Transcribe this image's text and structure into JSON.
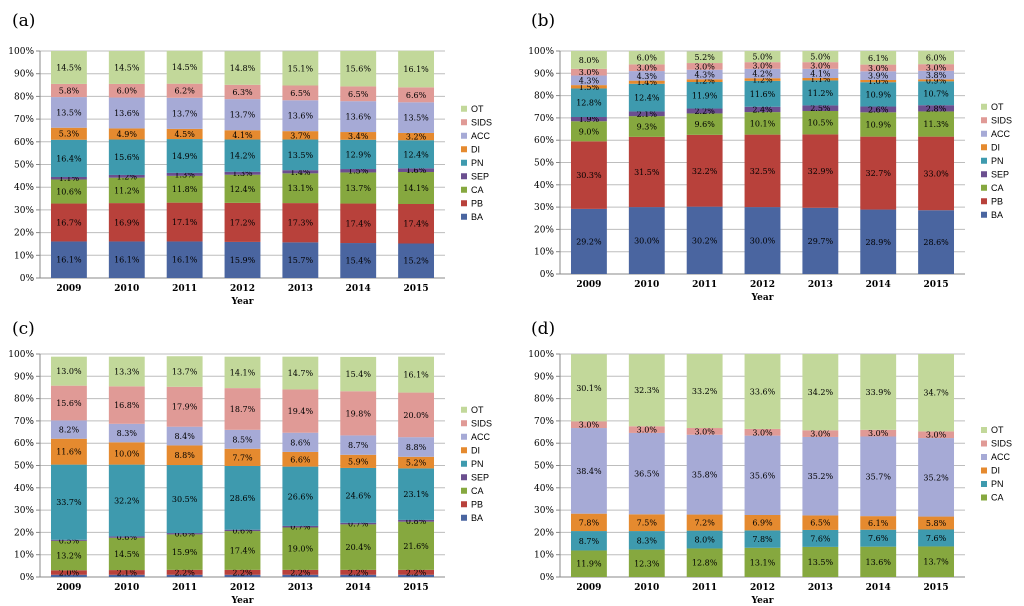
{
  "colors": {
    "BA": "#4a65a0",
    "PB": "#b8413b",
    "CA": "#86a83f",
    "SEP": "#6b4f8f",
    "PN": "#3e9aae",
    "DI": "#e58a2f",
    "ACC": "#a6aad6",
    "SIDS": "#e09a96",
    "OT": "#c2d89a"
  },
  "chart_data": [
    {
      "type": "bar",
      "stacked": true,
      "panel_label": "(a)",
      "xlabel": "Year",
      "ylabel": "",
      "ylim": [
        0,
        100
      ],
      "yticks": [
        "0%",
        "10%",
        "20%",
        "30%",
        "40%",
        "50%",
        "60%",
        "70%",
        "80%",
        "90%",
        "100%"
      ],
      "categories": [
        "2009",
        "2010",
        "2011",
        "2012",
        "2013",
        "2014",
        "2015"
      ],
      "legend": [
        "OT",
        "SIDS",
        "ACC",
        "DI",
        "PN",
        "SEP",
        "CA",
        "PB",
        "BA"
      ],
      "series": [
        {
          "name": "BA",
          "values": [
            16.1,
            16.1,
            16.1,
            15.9,
            15.7,
            15.4,
            15.2
          ],
          "labels": [
            "16.1%",
            "16.1%",
            "16.1%",
            "15.9%",
            "15.7%",
            "15.4%",
            "15.2%"
          ]
        },
        {
          "name": "PB",
          "values": [
            16.7,
            16.9,
            17.1,
            17.2,
            17.3,
            17.4,
            17.4
          ],
          "labels": [
            "16.7%",
            "16.9%",
            "17.1%",
            "17.2%",
            "17.3%",
            "17.4%",
            "17.4%"
          ]
        },
        {
          "name": "CA",
          "values": [
            10.6,
            11.2,
            11.8,
            12.4,
            13.1,
            13.7,
            14.1
          ],
          "labels": [
            "10.6%",
            "11.2%",
            "11.8%",
            "12.4%",
            "13.1%",
            "13.7%",
            "14.1%"
          ]
        },
        {
          "name": "SEP",
          "values": [
            1.1,
            1.2,
            1.3,
            1.3,
            1.4,
            1.5,
            1.6
          ],
          "labels": [
            "1.1%",
            "1.2%",
            "1.3%",
            "1.3%",
            "1.4%",
            "1.5%",
            "1.6%"
          ]
        },
        {
          "name": "PN",
          "values": [
            16.4,
            15.6,
            14.9,
            14.2,
            13.5,
            12.9,
            12.4
          ],
          "labels": [
            "16.4%",
            "15.6%",
            "14.9%",
            "14.2%",
            "13.5%",
            "12.9%",
            "12.4%"
          ]
        },
        {
          "name": "DI",
          "values": [
            5.3,
            4.9,
            4.5,
            4.1,
            3.7,
            3.4,
            3.2
          ],
          "labels": [
            "5.3%",
            "4.9%",
            "4.5%",
            "4.1%",
            "3.7%",
            "3.4%",
            "3.2%"
          ]
        },
        {
          "name": "ACC",
          "values": [
            13.5,
            13.6,
            13.7,
            13.7,
            13.6,
            13.6,
            13.5
          ],
          "labels": [
            "13.5%",
            "13.6%",
            "13.7%",
            "13.7%",
            "13.6%",
            "13.6%",
            "13.5%"
          ]
        },
        {
          "name": "SIDS",
          "values": [
            5.8,
            6.0,
            6.2,
            6.3,
            6.5,
            6.5,
            6.6
          ],
          "labels": [
            "5.8%",
            "6.0%",
            "6.2%",
            "6.3%",
            "6.5%",
            "6.5%",
            "6.6%"
          ]
        },
        {
          "name": "OT",
          "values": [
            14.5,
            14.5,
            14.5,
            14.8,
            15.1,
            15.6,
            16.1
          ],
          "labels": [
            "14.5%",
            "14.5%",
            "14.5%",
            "14.8%",
            "15.1%",
            "15.6%",
            "16.1%"
          ]
        }
      ]
    },
    {
      "type": "bar",
      "stacked": true,
      "panel_label": "(b)",
      "xlabel": "Year",
      "ylabel": "",
      "ylim": [
        0,
        100
      ],
      "yticks": [
        "0%",
        "10%",
        "20%",
        "30%",
        "40%",
        "50%",
        "60%",
        "70%",
        "80%",
        "90%",
        "100%"
      ],
      "categories": [
        "2009",
        "2010",
        "2011",
        "2012",
        "2013",
        "2014",
        "2015"
      ],
      "legend": [
        "OT",
        "SIDS",
        "ACC",
        "DI",
        "PN",
        "SEP",
        "CA",
        "PB",
        "BA"
      ],
      "series": [
        {
          "name": "BA",
          "values": [
            29.2,
            30.0,
            30.2,
            30.0,
            29.7,
            28.9,
            28.6
          ],
          "labels": [
            "29.2%",
            "30.0%",
            "30.2%",
            "30.0%",
            "29.7%",
            "28.9%",
            "28.6%"
          ]
        },
        {
          "name": "PB",
          "values": [
            30.3,
            31.5,
            32.2,
            32.5,
            32.9,
            32.7,
            33.0
          ],
          "labels": [
            "30.3%",
            "31.5%",
            "32.2%",
            "32.5%",
            "32.9%",
            "32.7%",
            "33.0%"
          ]
        },
        {
          "name": "CA",
          "values": [
            9.0,
            9.3,
            9.6,
            10.1,
            10.5,
            10.9,
            11.3
          ],
          "labels": [
            "9.0%",
            "9.3%",
            "9.6%",
            "10.1%",
            "10.5%",
            "10.9%",
            "11.3%"
          ]
        },
        {
          "name": "SEP",
          "values": [
            1.9,
            2.1,
            2.2,
            2.4,
            2.5,
            2.6,
            2.8
          ],
          "labels": [
            "1.9%",
            "2.1%",
            "2.2%",
            "2.4%",
            "2.5%",
            "2.6%",
            "2.8%"
          ]
        },
        {
          "name": "PN",
          "values": [
            12.8,
            12.4,
            11.9,
            11.6,
            11.2,
            10.9,
            10.7
          ],
          "labels": [
            "12.8%",
            "12.4%",
            "11.9%",
            "11.6%",
            "11.2%",
            "10.9%",
            "10.7%"
          ]
        },
        {
          "name": "DI",
          "values": [
            1.5,
            1.4,
            1.2,
            1.2,
            1.1,
            1.0,
            0.9
          ],
          "labels": [
            "1.5%",
            "1.4%",
            "1.2%",
            "1.2%",
            "1.1%",
            "1.0%",
            "0.9%"
          ]
        },
        {
          "name": "ACC",
          "values": [
            4.3,
            4.3,
            4.3,
            4.2,
            4.1,
            3.9,
            3.8
          ],
          "labels": [
            "4.3%",
            "4.3%",
            "4.3%",
            "4.2%",
            "4.1%",
            "3.9%",
            "3.8%"
          ]
        },
        {
          "name": "SIDS",
          "values": [
            3.0,
            3.0,
            3.0,
            3.0,
            3.0,
            3.0,
            3.0
          ],
          "labels": [
            "3.0%",
            "3.0%",
            "3.0%",
            "3.0%",
            "3.0%",
            "3.0%",
            "3.0%"
          ]
        },
        {
          "name": "OT",
          "values": [
            8.0,
            6.0,
            5.2,
            5.0,
            5.0,
            6.1,
            6.0
          ],
          "labels": [
            "8.0%",
            "6.0%",
            "5.2%",
            "5.0%",
            "5.0%",
            "6.1%",
            "6.0%"
          ]
        }
      ]
    },
    {
      "type": "bar",
      "stacked": true,
      "panel_label": "(c)",
      "xlabel": "Year",
      "ylabel": "",
      "ylim": [
        0,
        100
      ],
      "yticks": [
        "0%",
        "10%",
        "20%",
        "30%",
        "40%",
        "50%",
        "60%",
        "70%",
        "80%",
        "90%",
        "100%"
      ],
      "categories": [
        "2009",
        "2010",
        "2011",
        "2012",
        "2013",
        "2014",
        "2015"
      ],
      "legend": [
        "OT",
        "SIDS",
        "ACC",
        "DI",
        "PN",
        "SEP",
        "CA",
        "PB",
        "BA"
      ],
      "series": [
        {
          "name": "BA",
          "values": [
            1.0,
            1.0,
            1.0,
            1.0,
            1.0,
            1.0,
            1.0
          ],
          "labels": [
            "",
            "",
            "",
            "",
            "",
            "",
            ""
          ]
        },
        {
          "name": "PB",
          "values": [
            2.0,
            2.1,
            2.2,
            2.2,
            2.2,
            2.2,
            2.2
          ],
          "labels": [
            "2.0%",
            "2.1%",
            "2.2%",
            "2.2%",
            "2.2%",
            "2.2%",
            "2.2%"
          ]
        },
        {
          "name": "CA",
          "values": [
            13.2,
            14.5,
            15.9,
            17.4,
            19.0,
            20.4,
            21.6
          ],
          "labels": [
            "13.2%",
            "14.5%",
            "15.9%",
            "17.4%",
            "19.0%",
            "20.4%",
            "21.6%"
          ]
        },
        {
          "name": "SEP",
          "values": [
            0.5,
            0.6,
            0.6,
            0.6,
            0.7,
            0.7,
            0.8
          ],
          "labels": [
            "0.5%",
            "0.6%",
            "0.6%",
            "0.6%",
            "0.7%",
            "0.7%",
            "0.8%"
          ]
        },
        {
          "name": "PN",
          "values": [
            33.7,
            32.2,
            30.5,
            28.6,
            26.6,
            24.6,
            23.1
          ],
          "labels": [
            "33.7%",
            "32.2%",
            "30.5%",
            "28.6%",
            "26.6%",
            "24.6%",
            "23.1%"
          ]
        },
        {
          "name": "DI",
          "values": [
            11.6,
            10.0,
            8.8,
            7.7,
            6.6,
            5.9,
            5.2
          ],
          "labels": [
            "11.6%",
            "10.0%",
            "8.8%",
            "7.7%",
            "6.6%",
            "5.9%",
            "5.2%"
          ]
        },
        {
          "name": "ACC",
          "values": [
            8.2,
            8.3,
            8.4,
            8.5,
            8.6,
            8.7,
            8.8
          ],
          "labels": [
            "8.2%",
            "8.3%",
            "8.4%",
            "8.5%",
            "8.6%",
            "8.7%",
            "8.8%"
          ]
        },
        {
          "name": "SIDS",
          "values": [
            15.6,
            16.8,
            17.9,
            18.7,
            19.4,
            19.8,
            20.0
          ],
          "labels": [
            "15.6%",
            "16.8%",
            "17.9%",
            "18.7%",
            "19.4%",
            "19.8%",
            "20.0%"
          ]
        },
        {
          "name": "OT",
          "values": [
            13.0,
            13.3,
            13.7,
            14.1,
            14.7,
            15.4,
            16.1
          ],
          "labels": [
            "13.0%",
            "13.3%",
            "13.7%",
            "14.1%",
            "14.7%",
            "15.4%",
            "16.1%"
          ]
        }
      ]
    },
    {
      "type": "bar",
      "stacked": true,
      "panel_label": "(d)",
      "xlabel": "Year",
      "ylabel": "",
      "ylim": [
        0,
        100
      ],
      "yticks": [
        "0%",
        "10%",
        "20%",
        "30%",
        "40%",
        "50%",
        "60%",
        "70%",
        "80%",
        "90%",
        "100%"
      ],
      "categories": [
        "2009",
        "2010",
        "2011",
        "2012",
        "2013",
        "2014",
        "2015"
      ],
      "legend": [
        "OT",
        "SIDS",
        "ACC",
        "DI",
        "PN",
        "CA"
      ],
      "series": [
        {
          "name": "CA",
          "values": [
            11.9,
            12.3,
            12.8,
            13.1,
            13.5,
            13.6,
            13.7
          ],
          "labels": [
            "11.9%",
            "12.3%",
            "12.8%",
            "13.1%",
            "13.5%",
            "13.6%",
            "13.7%"
          ]
        },
        {
          "name": "PN",
          "values": [
            8.7,
            8.3,
            8.0,
            7.8,
            7.6,
            7.6,
            7.6
          ],
          "labels": [
            "8.7%",
            "8.3%",
            "8.0%",
            "7.8%",
            "7.6%",
            "7.6%",
            "7.6%"
          ]
        },
        {
          "name": "DI",
          "values": [
            7.8,
            7.5,
            7.2,
            6.9,
            6.5,
            6.1,
            5.8
          ],
          "labels": [
            "7.8%",
            "7.5%",
            "7.2%",
            "6.9%",
            "6.5%",
            "6.1%",
            "5.8%"
          ]
        },
        {
          "name": "ACC",
          "values": [
            38.4,
            36.5,
            35.8,
            35.6,
            35.2,
            35.7,
            35.2
          ],
          "labels": [
            "38.4%",
            "36.5%",
            "35.8%",
            "35.6%",
            "35.2%",
            "35.7%",
            "35.2%"
          ]
        },
        {
          "name": "SIDS",
          "values": [
            3.0,
            3.0,
            3.0,
            3.0,
            3.0,
            3.0,
            3.0
          ],
          "labels": [
            "3.0%",
            "3.0%",
            "3.0%",
            "3.0%",
            "3.0%",
            "3.0%",
            "3.0%"
          ]
        },
        {
          "name": "OT",
          "values": [
            30.1,
            32.3,
            33.2,
            33.6,
            34.2,
            33.9,
            34.7
          ],
          "labels": [
            "30.1%",
            "32.3%",
            "33.2%",
            "33.6%",
            "34.2%",
            "33.9%",
            "34.7%"
          ]
        }
      ]
    }
  ]
}
